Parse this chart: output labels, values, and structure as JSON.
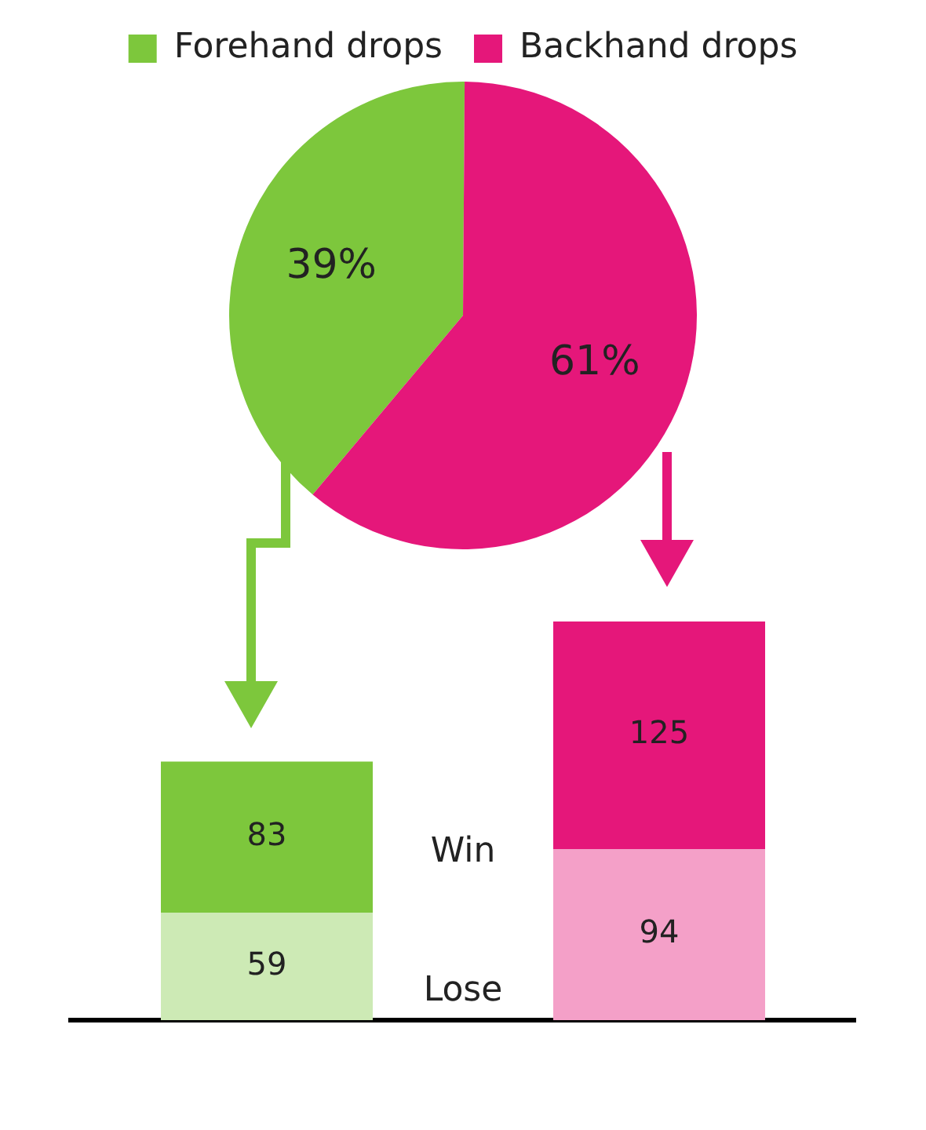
{
  "chart_data": [
    {
      "type": "pie",
      "categories": [
        "Forehand drops",
        "Backhand drops"
      ],
      "values": [
        39,
        61
      ],
      "colors": [
        "#7dc73c",
        "#e5177a"
      ],
      "legend": "top",
      "data_labels": true,
      "value_labels": [
        "39%",
        "61%"
      ]
    },
    {
      "type": "bar",
      "stacked": true,
      "categories": [
        null,
        null
      ],
      "data_labels": true,
      "grid": false,
      "series": [
        {
          "name": "Lose",
          "colors": [
            "#cdeab5",
            "#f4a0c8"
          ],
          "values": [
            59,
            94
          ]
        },
        {
          "name": "Win",
          "colors": [
            "#7dc73c",
            "#e5177a"
          ],
          "values": [
            83,
            125
          ]
        }
      ]
    }
  ]
}
